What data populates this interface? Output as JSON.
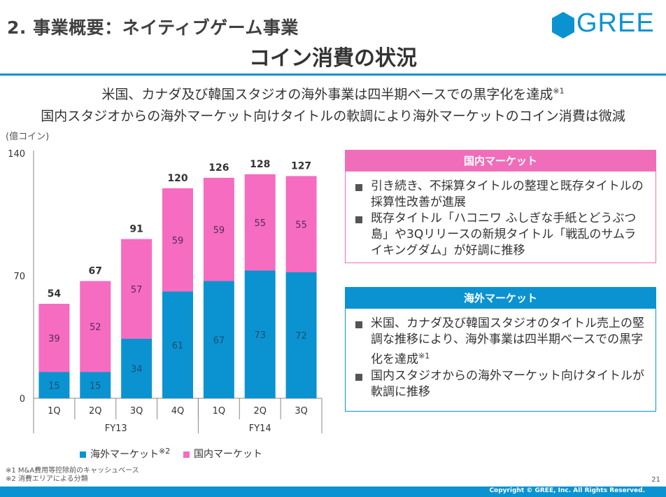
{
  "header": {
    "section_title": "2. 事業概要：ネイティブゲーム事業",
    "logo_text": "GREE",
    "page_title": "コイン消費の状況"
  },
  "lead": {
    "line1": "米国、カナダ及び韓国スタジオの海外事業は四半期ベースでの黒字化を達成",
    "line1_note": "※1",
    "line2": "国内スタジオからの海外マーケット向けタイトルの軟調により海外マーケットのコイン消費は微減"
  },
  "chart_data": {
    "type": "bar",
    "stacked": true,
    "unit_label": "(億コイン)",
    "categories": [
      "1Q",
      "2Q",
      "3Q",
      "4Q",
      "1Q",
      "2Q",
      "3Q"
    ],
    "groups": [
      {
        "label": "FY13",
        "span": 4
      },
      {
        "label": "FY14",
        "span": 3
      }
    ],
    "series": [
      {
        "name": "海外マーケット",
        "name_note": "※2",
        "color": "#0b93d1",
        "values": [
          15,
          15,
          34,
          61,
          67,
          73,
          72
        ],
        "label_color": "#1a4e6e"
      },
      {
        "name": "国内マーケット",
        "color": "#f56cc1",
        "values": [
          39,
          52,
          57,
          59,
          59,
          55,
          55
        ],
        "label_color": "#5a2a55"
      }
    ],
    "totals": [
      54,
      67,
      91,
      120,
      126,
      128,
      127
    ],
    "yticks": [
      0,
      70,
      140
    ],
    "ylim": [
      0,
      140
    ],
    "grid": false
  },
  "domestic_box": {
    "title": "国内マーケット",
    "bullets": [
      "引き続き、不採算タイトルの整理と既存タイトルの採算性改善が進展",
      "既存タイトル「ハコニワ ふしぎな手紙とどうぶつ島」や3Qリリースの新規タイトル「戦乱のサムライキングダム」が好調に推移"
    ]
  },
  "overseas_box": {
    "title": "海外マーケット",
    "bullet1": "米国、カナダ及び韓国スタジオのタイトル売上の堅調な推移により、海外事業は四半期ベースでの黒字化を達成",
    "bullet1_note": "※1",
    "bullet2": "国内スタジオからの海外マーケット向けタイトルが軟調に推移"
  },
  "notes": [
    "※1  M&A費用等控除前のキャッシュベース",
    "※2  消費エリアによる分類"
  ],
  "footer": {
    "copyright": "Copyright © GREE, Inc. All Rights Reserved.",
    "page_number": "21"
  }
}
